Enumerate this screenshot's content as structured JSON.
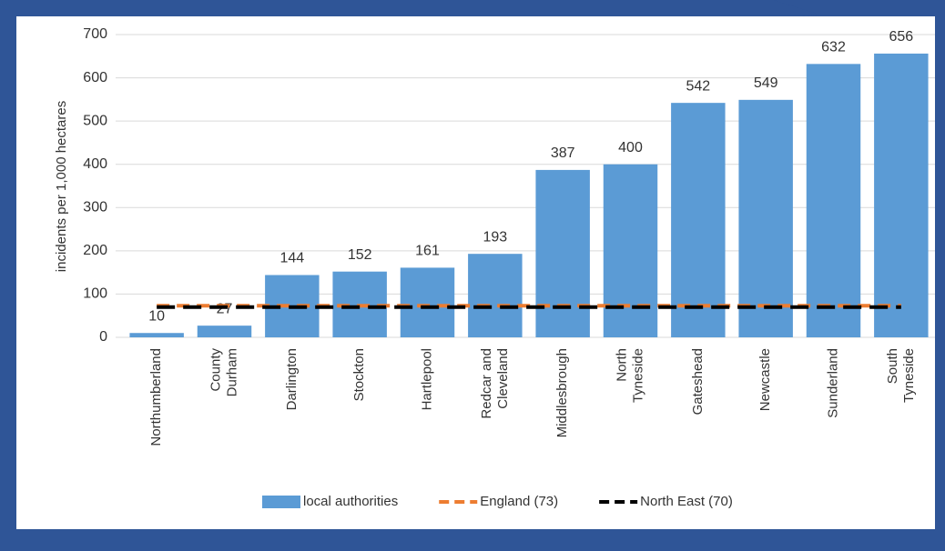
{
  "chart_data": {
    "type": "bar",
    "y_axis_label": "incidents per 1,000 hectares",
    "categories": [
      "Northumberland",
      "County\nDurham",
      "Darlington",
      "Stockton",
      "Hartlepool",
      "Redcar and\nCleveland",
      "Middlesbrough",
      "North\nTyneside",
      "Gateshead",
      "Newcastle",
      "Sunderland",
      "South\nTyneside"
    ],
    "series": [
      {
        "name": "local authorities",
        "color": "#5b9bd5",
        "values": [
          10,
          27,
          144,
          152,
          161,
          193,
          387,
          400,
          542,
          549,
          632,
          656
        ]
      }
    ],
    "reference_lines": [
      {
        "name": "England (73)",
        "value": 73,
        "color": "#ed7d31"
      },
      {
        "name": "North East (70)",
        "value": 70,
        "color": "#000000"
      }
    ],
    "ylim": [
      0,
      700
    ],
    "yticks": [
      0,
      100,
      200,
      300,
      400,
      500,
      600,
      700
    ],
    "grid": true,
    "legend": "bottom"
  }
}
